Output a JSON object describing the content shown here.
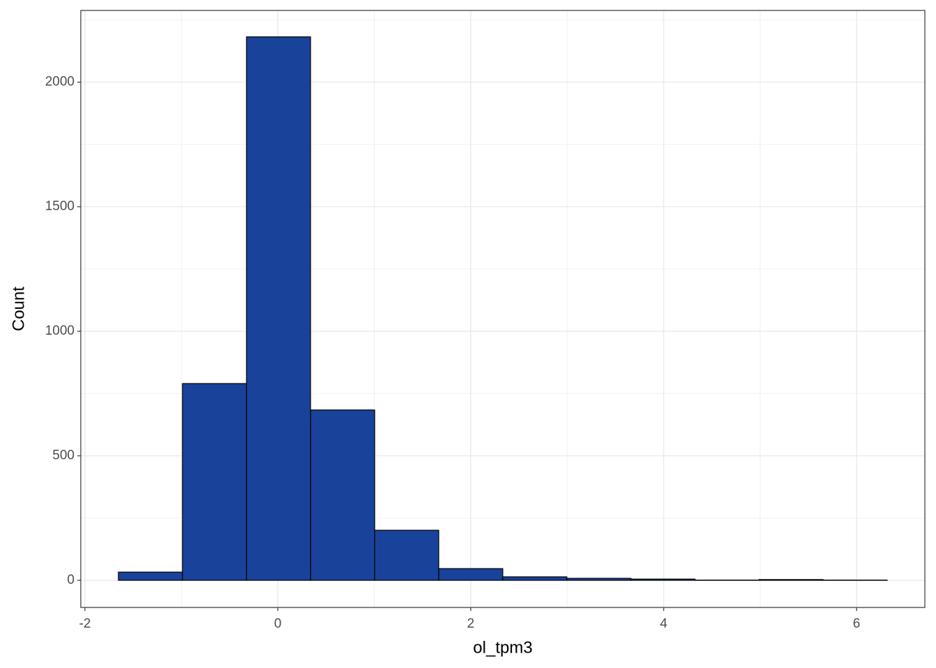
{
  "chart_data": {
    "type": "histogram",
    "x_label": "ol_tpm3",
    "y_label": "Count",
    "bins": [
      -1.653,
      -0.989,
      -0.325,
      0.339,
      1.004,
      1.668,
      2.332,
      2.996,
      3.661,
      4.325,
      4.989,
      5.653,
      6.318
    ],
    "values": [
      33,
      790,
      2182,
      684,
      201,
      47,
      14,
      8,
      5,
      1,
      3,
      1
    ],
    "color": "#19429a",
    "xlim": [
      -2.043,
      6.708
    ],
    "xticks": [
      -2,
      0,
      2,
      4,
      6
    ],
    "ylim": [
      -109,
      2288
    ],
    "yticks": [
      0,
      500,
      1000,
      1500,
      2000
    ],
    "grid": true
  }
}
